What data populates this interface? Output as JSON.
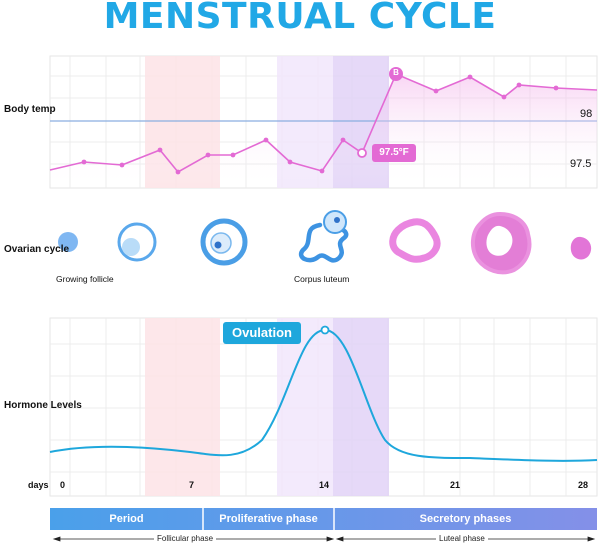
{
  "title": "MENSTRUAL CYCLE",
  "rows": {
    "temp": "Body temp",
    "ovarian": "Ovarian cycle",
    "hormone": "Hormone Levels"
  },
  "temp_axis": {
    "high": "98",
    "low": "97.5"
  },
  "temp_callout": "97.5°F",
  "marker_letter": "B",
  "ovulation": "Ovulation",
  "follicles": {
    "growing": "Growing follicle",
    "corpus": "Corpus luteum"
  },
  "days_label": "days",
  "ticks": [
    "0",
    "7",
    "14",
    "21",
    "28"
  ],
  "phases": [
    "Period",
    "Proliferative phase",
    "Secretory phases"
  ],
  "subphases": [
    "Follicular phase",
    "Luteal phase"
  ],
  "colors": {
    "title": "#21a8e6",
    "temp_line": "#e36ad4",
    "hormone_line": "#1ea7dc",
    "period": "#4b9ee6",
    "secretory": "#7a88e6"
  }
}
